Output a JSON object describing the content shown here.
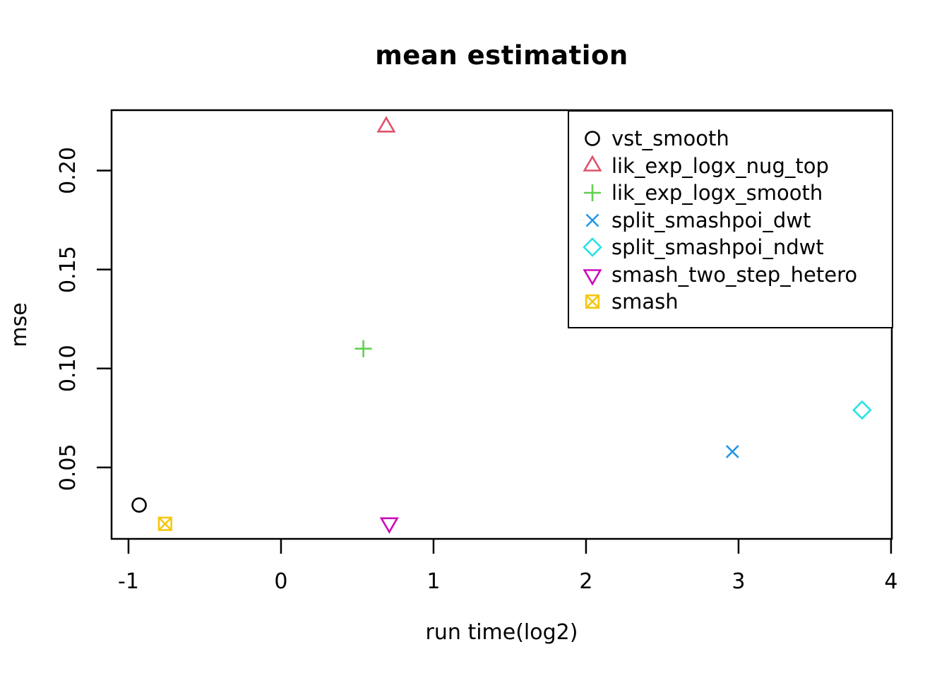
{
  "chart_data": {
    "type": "scatter",
    "title": "mean estimation",
    "xlabel": "run time(log2)",
    "ylabel": "mse",
    "xlim": [
      -1.111,
      4.005
    ],
    "ylim": [
      0.0139,
      0.2305
    ],
    "grid": false,
    "legend_position": "topright",
    "x_ticks": [
      {
        "value": -1,
        "label": "-1"
      },
      {
        "value": 0,
        "label": "0"
      },
      {
        "value": 1,
        "label": "1"
      },
      {
        "value": 2,
        "label": "2"
      },
      {
        "value": 3,
        "label": "3"
      },
      {
        "value": 4,
        "label": "4"
      }
    ],
    "y_ticks": [
      {
        "value": 0.05,
        "label": "0.05"
      },
      {
        "value": 0.1,
        "label": "0.10"
      },
      {
        "value": 0.15,
        "label": "0.15"
      },
      {
        "value": 0.2,
        "label": "0.20"
      }
    ],
    "series": [
      {
        "name": "vst_smooth",
        "marker": "circle-open",
        "icon": "circle-icon",
        "color": "#000000",
        "points": [
          [
            -0.93,
            0.031
          ]
        ]
      },
      {
        "name": "lik_exp_logx_nug_top",
        "marker": "triangle-up-open",
        "icon": "triangle-up-icon",
        "color": "#DF536B",
        "points": [
          [
            0.69,
            0.222
          ]
        ]
      },
      {
        "name": "lik_exp_logx_smooth",
        "marker": "plus",
        "icon": "plus-icon",
        "color": "#61D04F",
        "points": [
          [
            0.54,
            0.11
          ]
        ]
      },
      {
        "name": "split_smashpoi_dwt",
        "marker": "x",
        "icon": "x-icon",
        "color": "#2297E6",
        "points": [
          [
            2.96,
            0.058
          ]
        ]
      },
      {
        "name": "split_smashpoi_ndwt",
        "marker": "diamond-open",
        "icon": "diamond-icon",
        "color": "#28E2E5",
        "points": [
          [
            3.81,
            0.079
          ]
        ]
      },
      {
        "name": "smash_two_step_hetero",
        "marker": "triangle-down-open",
        "icon": "triangle-down-icon",
        "color": "#CD0BBC",
        "points": [
          [
            0.71,
            0.022
          ]
        ]
      },
      {
        "name": "smash",
        "marker": "square-x",
        "icon": "square-x-icon",
        "color": "#F5C710",
        "points": [
          [
            -0.76,
            0.0215
          ]
        ]
      }
    ],
    "axis_color": "#000000",
    "background_color": "#ffffff"
  }
}
